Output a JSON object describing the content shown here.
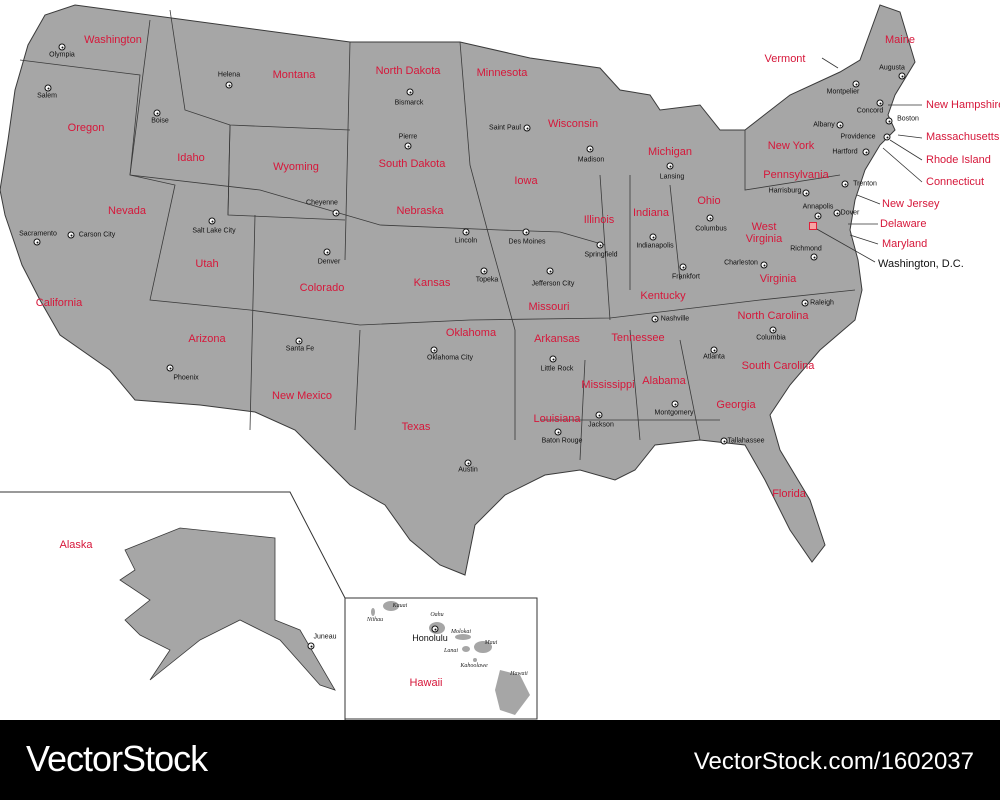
{
  "colors": {
    "land": "#a6a6a6",
    "border": "#3a3a3a",
    "state_label": "#d6173a",
    "footer": "#000000"
  },
  "states": [
    "Washington",
    "Montana",
    "North Dakota",
    "Minnesota",
    "Maine",
    "Oregon",
    "Idaho",
    "Wyoming",
    "South Dakota",
    "Wisconsin",
    "Michigan",
    "Iowa",
    "Nevada",
    "Nebraska",
    "Illinois",
    "Indiana",
    "Ohio",
    "Utah",
    "Colorado",
    "Kansas",
    "Missouri",
    "Kentucky",
    "West Virginia",
    "Virginia",
    "California",
    "Arizona",
    "New Mexico",
    "Oklahoma",
    "Arkansas",
    "Tennessee",
    "North Carolina",
    "South Carolina",
    "Texas",
    "Louisiana",
    "Mississippi",
    "Alabama",
    "Georgia",
    "Florida",
    "New York",
    "Pennsylvania",
    "Alaska",
    "Hawaii"
  ],
  "callouts": [
    "Vermont",
    "New Hampshire",
    "Massachusetts",
    "Rhode Island",
    "Connecticut",
    "New Jersey",
    "Delaware",
    "Maryland",
    "Washington, D.C."
  ],
  "capitals": [
    "Olympia",
    "Salem",
    "Helena",
    "Bismarck",
    "Saint Paul",
    "Pierre",
    "Boise",
    "Cheyenne",
    "Madison",
    "Lansing",
    "Des Moines",
    "Lincoln",
    "Carson City",
    "Sacramento",
    "Salt Lake City",
    "Denver",
    "Topeka",
    "Springfield",
    "Indianapolis",
    "Columbus",
    "Jefferson City",
    "Frankfort",
    "Charleston",
    "Richmond",
    "Harrisburg",
    "Annapolis",
    "Dover",
    "Trenton",
    "Hartford",
    "Providence",
    "Boston",
    "Concord",
    "Albany",
    "Montpelier",
    "Augusta",
    "Raleigh",
    "Nashville",
    "Oklahoma City",
    "Little Rock",
    "Columbia",
    "Atlanta",
    "Montgomery",
    "Jackson",
    "Baton Rouge",
    "Tallahassee",
    "Austin",
    "Phoenix",
    "Santa Fe",
    "Juneau",
    "Honolulu"
  ],
  "hawaii_islands": [
    "Niihau",
    "Kauai",
    "Oahu",
    "Molokai",
    "Lanai",
    "Maui",
    "Kahoolawe",
    "Hawaii"
  ],
  "footer": {
    "brand": "VectorStock",
    "stock_id": "VectorStock.com/1602037"
  }
}
